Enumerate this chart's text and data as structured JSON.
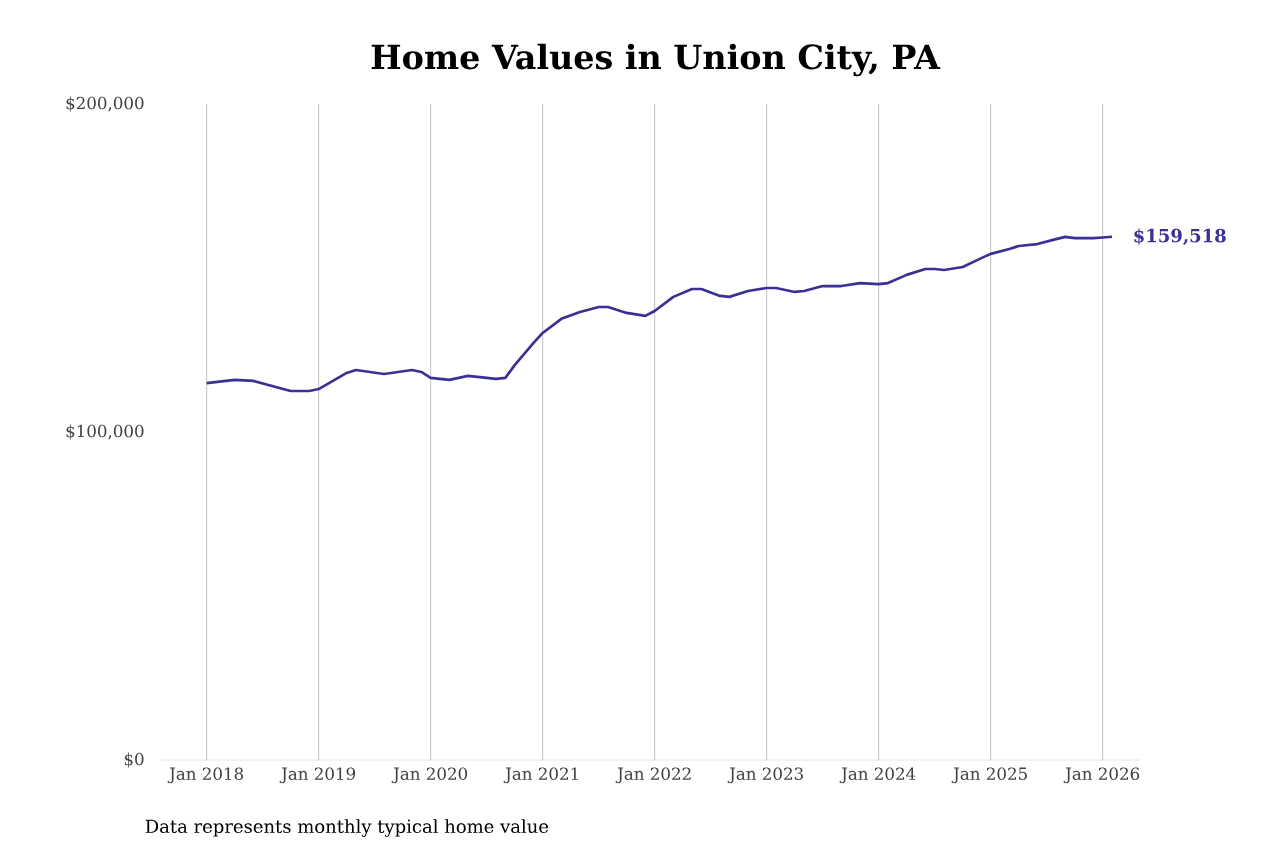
{
  "chart_data": {
    "type": "line",
    "title": "Home Values in Union City, PA",
    "x": [
      "2018-01",
      "2018-04",
      "2018-06",
      "2018-10",
      "2018-12",
      "2019-01",
      "2019-04",
      "2019-05",
      "2019-08",
      "2019-11",
      "2019-12",
      "2020-01",
      "2020-03",
      "2020-05",
      "2020-08",
      "2020-09",
      "2020-10",
      "2020-12",
      "2021-01",
      "2021-03",
      "2021-05",
      "2021-07",
      "2021-08",
      "2021-10",
      "2021-12",
      "2022-01",
      "2022-03",
      "2022-05",
      "2022-06",
      "2022-08",
      "2022-09",
      "2022-11",
      "2023-01",
      "2023-02",
      "2023-04",
      "2023-05",
      "2023-07",
      "2023-09",
      "2023-11",
      "2024-01",
      "2024-02",
      "2024-04",
      "2024-06",
      "2024-07",
      "2024-08",
      "2024-10",
      "2024-12",
      "2025-01",
      "2025-03",
      "2025-04",
      "2025-06",
      "2025-08",
      "2025-09",
      "2025-10",
      "2025-12",
      "2026-01",
      "2026-02"
    ],
    "series": [
      {
        "color": "#3a3096",
        "values": [
          114900,
          115900,
          115600,
          112500,
          112500,
          113100,
          118000,
          118900,
          117700,
          118900,
          118300,
          116500,
          115900,
          117100,
          116200,
          116500,
          120400,
          127100,
          130200,
          134500,
          136600,
          138100,
          138100,
          136300,
          135400,
          136900,
          141200,
          143600,
          143600,
          141500,
          141200,
          143000,
          143900,
          143900,
          142700,
          143000,
          144500,
          144500,
          145400,
          145100,
          145400,
          147900,
          149700,
          149700,
          149400,
          150300,
          153000,
          154300,
          155800,
          156700,
          157300,
          158800,
          159500,
          159100,
          159100,
          159300,
          159518
        ]
      }
    ],
    "xlim": [
      "2017-08",
      "2026-05"
    ],
    "ylim": [
      0,
      200000
    ],
    "xticks": [
      {
        "value": "2018-01",
        "label": "Jan 2018"
      },
      {
        "value": "2019-01",
        "label": "Jan 2019"
      },
      {
        "value": "2020-01",
        "label": "Jan 2020"
      },
      {
        "value": "2021-01",
        "label": "Jan 2021"
      },
      {
        "value": "2022-01",
        "label": "Jan 2022"
      },
      {
        "value": "2023-01",
        "label": "Jan 2023"
      },
      {
        "value": "2024-01",
        "label": "Jan 2024"
      },
      {
        "value": "2025-01",
        "label": "Jan 2025"
      },
      {
        "value": "2026-01",
        "label": "Jan 2026"
      }
    ],
    "yticks": [
      {
        "value": 0,
        "label": "$0"
      },
      {
        "value": 100000,
        "label": "$100,000"
      },
      {
        "value": 200000,
        "label": "$200,000"
      }
    ],
    "grid": "x",
    "marker": "none",
    "line_style": "solid",
    "annotations": [
      {
        "text": "$159,518",
        "x": "2026-02",
        "y": 159518
      },
      "Data represents monthly typical home value"
    ]
  }
}
